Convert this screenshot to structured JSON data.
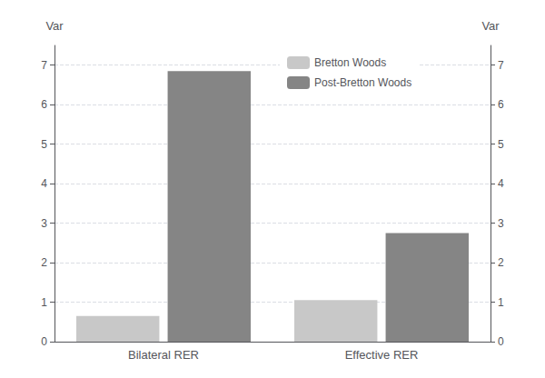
{
  "chart_data": {
    "type": "bar",
    "categories": [
      "Bilateral RER",
      "Effective RER"
    ],
    "series": [
      {
        "name": "Bretton Woods",
        "color": "#c8c8c8",
        "values": [
          0.65,
          1.05
        ]
      },
      {
        "name": "Post-Bretton Woods",
        "color": "#858585",
        "values": [
          6.85,
          2.75
        ]
      }
    ],
    "ylabel": "Var",
    "y2label": "Var",
    "ylim": [
      0,
      7.5
    ],
    "yticks": [
      0,
      1,
      2,
      3,
      4,
      5,
      6,
      7
    ],
    "y2lim": [
      0,
      7.5
    ],
    "y2ticks": [
      0,
      1,
      2,
      3,
      4,
      5,
      6,
      7
    ],
    "grid": true,
    "legend": "upper left"
  }
}
